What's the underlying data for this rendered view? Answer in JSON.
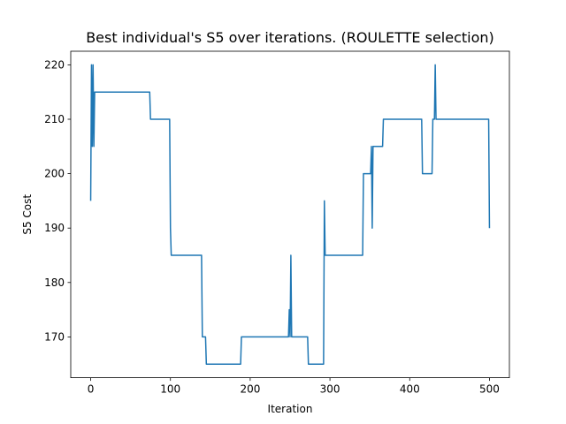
{
  "chart_data": {
    "type": "line",
    "title": "Best individual's S5 over iterations. (ROULETTE selection)",
    "xlabel": "Iteration",
    "ylabel": "S5 Cost",
    "xlim": [
      -25,
      525
    ],
    "ylim": [
      162.5,
      222.5
    ],
    "xticks": [
      0,
      100,
      200,
      300,
      400,
      500
    ],
    "yticks": [
      170,
      180,
      190,
      200,
      210,
      220
    ],
    "grid": false,
    "color": "#1f77b4",
    "series": [
      {
        "x": [
          0,
          1,
          2,
          3,
          4,
          5,
          6,
          74,
          75,
          99,
          100,
          101,
          139,
          140,
          144,
          145,
          188,
          189,
          248,
          249,
          250,
          251,
          252,
          253,
          254,
          272,
          273,
          292,
          293,
          294,
          295,
          341,
          342,
          351,
          352,
          353,
          354,
          355,
          366,
          367,
          415,
          416,
          428,
          429,
          431,
          432,
          433,
          434,
          499,
          500
        ],
        "y": [
          195,
          220,
          205,
          220,
          205,
          215,
          215,
          215,
          210,
          210,
          190,
          185,
          185,
          170,
          170,
          165,
          165,
          170,
          170,
          175,
          170,
          185,
          170,
          170,
          170,
          170,
          165,
          165,
          195,
          185,
          185,
          185,
          200,
          200,
          205,
          190,
          205,
          205,
          205,
          210,
          210,
          200,
          200,
          210,
          210,
          220,
          210,
          210,
          210,
          190
        ]
      }
    ]
  }
}
